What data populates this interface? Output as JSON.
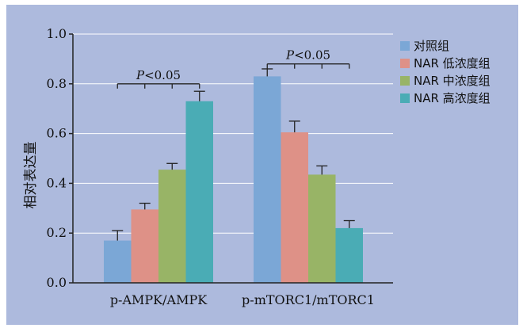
{
  "chart_data": {
    "type": "bar",
    "ylabel": "相对表达量",
    "xlabel": "",
    "title": "",
    "ylim": [
      0,
      1.0
    ],
    "yticks": [
      "0.0",
      "0.2",
      "0.4",
      "0.6",
      "0.8",
      "1.0"
    ],
    "grid": true,
    "legend_position": "right",
    "categories": [
      "p-AMPK/AMPK",
      "p-mTORC1/mTORC1"
    ],
    "series": [
      {
        "name": "对照组",
        "color": "#7ba7d6",
        "values": [
          0.17,
          0.83
        ],
        "errors": [
          0.04,
          0.03
        ]
      },
      {
        "name": "NAR 低浓度组",
        "color": "#de9187",
        "values": [
          0.295,
          0.605
        ],
        "errors": [
          0.025,
          0.045
        ]
      },
      {
        "name": "NAR 中浓度组",
        "color": "#98b466",
        "values": [
          0.455,
          0.435
        ],
        "errors": [
          0.025,
          0.035
        ]
      },
      {
        "name": "NAR 高浓度组",
        "color": "#4aacb5",
        "values": [
          0.73,
          0.22
        ],
        "errors": [
          0.04,
          0.03
        ]
      }
    ],
    "annotations": [
      {
        "category": "p-AMPK/AMPK",
        "text_italic": "P",
        "text_rest": "<0.05",
        "y": 0.8
      },
      {
        "category": "p-mTORC1/mTORC1",
        "text_italic": "P",
        "text_rest": "<0.05",
        "y": 0.88
      }
    ]
  }
}
